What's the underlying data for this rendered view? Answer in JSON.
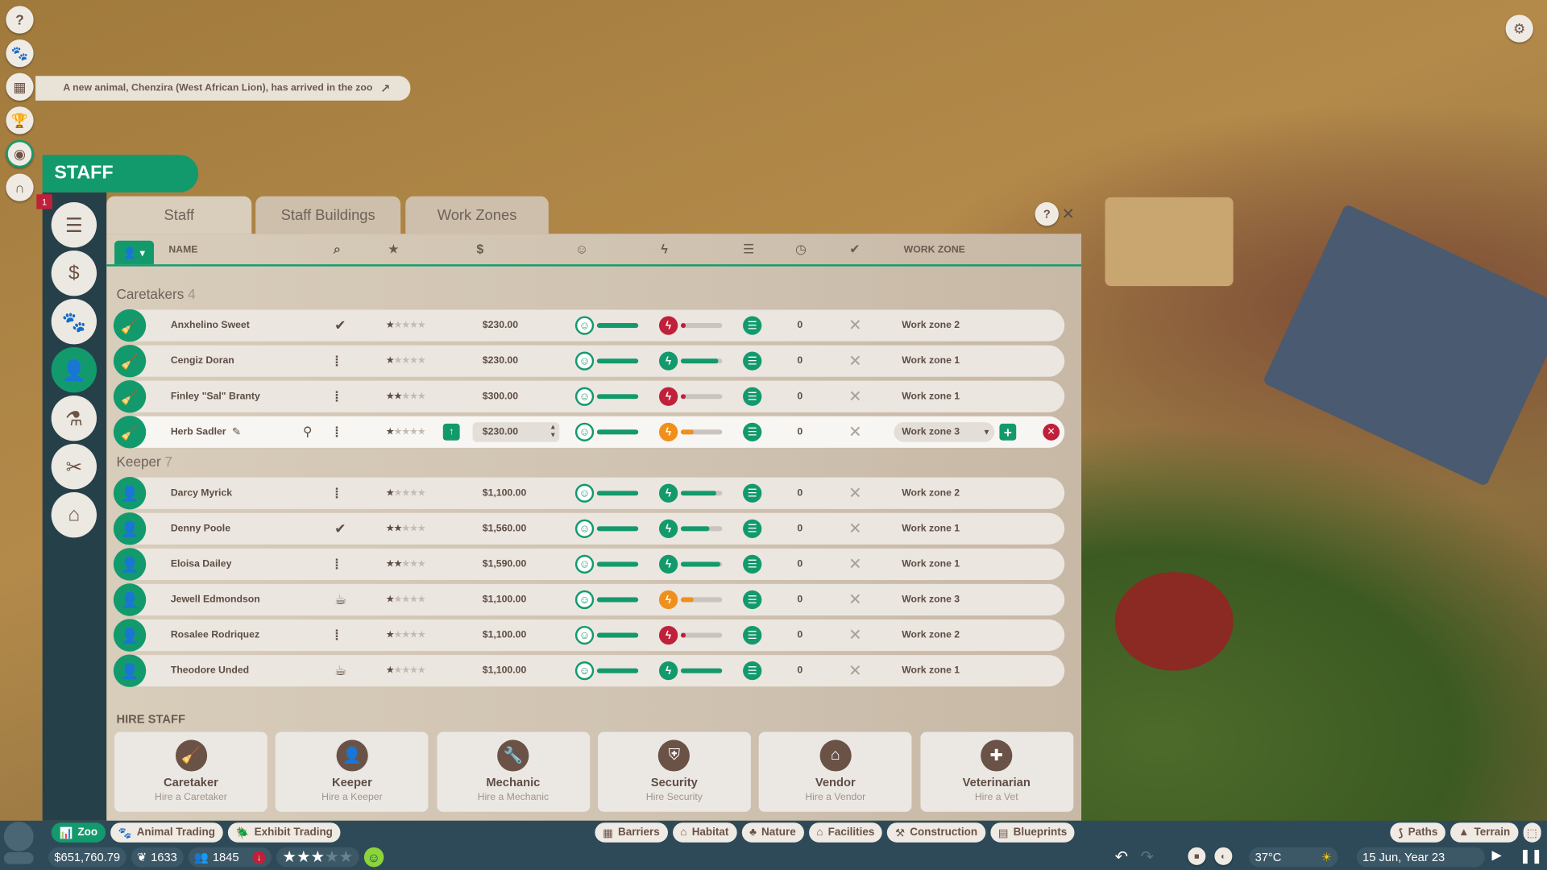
{
  "notification": "A new animal, Chenzira (West African Lion), has arrived in the zoo",
  "notification_badge": "1",
  "panel_title": "STAFF",
  "tabs": [
    "Staff",
    "Staff Buildings",
    "Work Zones"
  ],
  "columns": {
    "name": "NAME",
    "work_zone": "WORK ZONE"
  },
  "colors": {
    "accent": "#139a6c",
    "danger": "#c0203a",
    "warning": "#f0901c"
  },
  "groups": [
    {
      "label": "Caretakers",
      "count": "4",
      "icon": "broom-icon",
      "staff": [
        {
          "name": "Anxhelino Sweet",
          "status": "check",
          "stars": 1,
          "salary": "$230.00",
          "happiness": 100,
          "energy": 5,
          "energy_state": "low",
          "tasks": "0",
          "zone": "Work zone 2"
        },
        {
          "name": "Cengiz Doran",
          "status": "walking",
          "stars": 1,
          "salary": "$230.00",
          "happiness": 100,
          "energy": 90,
          "energy_state": "ok",
          "tasks": "0",
          "zone": "Work zone 1"
        },
        {
          "name": "Finley \"Sal\" Branty",
          "status": "walking",
          "stars": 2,
          "salary": "$300.00",
          "happiness": 100,
          "energy": 5,
          "energy_state": "low",
          "tasks": "0",
          "zone": "Work zone 1"
        },
        {
          "name": "Herb Sadler",
          "status": "walking",
          "stars": 1,
          "salary": "$230.00",
          "happiness": 100,
          "energy": 30,
          "energy_state": "medium",
          "tasks": "0",
          "zone": "Work zone 3",
          "selected": true
        }
      ]
    },
    {
      "label": "Keeper",
      "count": "7",
      "icon": "keeper-icon",
      "staff": [
        {
          "name": "Darcy Myrick",
          "status": "walking",
          "stars": 1,
          "salary": "$1,100.00",
          "happiness": 100,
          "energy": 85,
          "energy_state": "ok",
          "tasks": "0",
          "zone": "Work zone 2"
        },
        {
          "name": "Denny Poole",
          "status": "check",
          "stars": 2,
          "salary": "$1,560.00",
          "happiness": 100,
          "energy": 70,
          "energy_state": "ok",
          "tasks": "0",
          "zone": "Work zone 1"
        },
        {
          "name": "Eloisa Dailey",
          "status": "walking",
          "stars": 2,
          "salary": "$1,590.00",
          "happiness": 100,
          "energy": 95,
          "energy_state": "ok",
          "tasks": "0",
          "zone": "Work zone 1"
        },
        {
          "name": "Jewell Edmondson",
          "status": "break",
          "stars": 1,
          "salary": "$1,100.00",
          "happiness": 100,
          "energy": 30,
          "energy_state": "medium",
          "tasks": "0",
          "zone": "Work zone 3"
        },
        {
          "name": "Rosalee Rodriquez",
          "status": "walking",
          "stars": 1,
          "salary": "$1,100.00",
          "happiness": 100,
          "energy": 10,
          "energy_state": "low",
          "tasks": "0",
          "zone": "Work zone 2"
        },
        {
          "name": "Theodore Unded",
          "status": "break",
          "stars": 1,
          "salary": "$1,100.00",
          "happiness": 100,
          "energy": 100,
          "energy_state": "ok",
          "tasks": "0",
          "zone": "Work zone 1"
        }
      ]
    }
  ],
  "hire_title": "HIRE STAFF",
  "hire": [
    {
      "title": "Caretaker",
      "sub": "Hire a Caretaker",
      "icon": "broom-icon"
    },
    {
      "title": "Keeper",
      "sub": "Hire a Keeper",
      "icon": "keeper-icon"
    },
    {
      "title": "Mechanic",
      "sub": "Hire a Mechanic",
      "icon": "wrench-icon"
    },
    {
      "title": "Security",
      "sub": "Hire Security",
      "icon": "shield-icon"
    },
    {
      "title": "Vendor",
      "sub": "Hire a Vendor",
      "icon": "shop-icon"
    },
    {
      "title": "Veterinarian",
      "sub": "Hire a Vet",
      "icon": "vet-bag-icon"
    }
  ],
  "bottom": {
    "modes": [
      "Zoo",
      "Animal Trading",
      "Exhibit Trading"
    ],
    "build": [
      "Barriers",
      "Habitat",
      "Nature",
      "Facilities",
      "Construction",
      "Blueprints"
    ],
    "right": [
      "Paths",
      "Terrain"
    ],
    "money": "$651,760.79",
    "conservation": "1633",
    "guests": "1845",
    "zoo_rating_stars": 3,
    "temperature": "37°C",
    "date": "15 Jun, Year 23"
  }
}
